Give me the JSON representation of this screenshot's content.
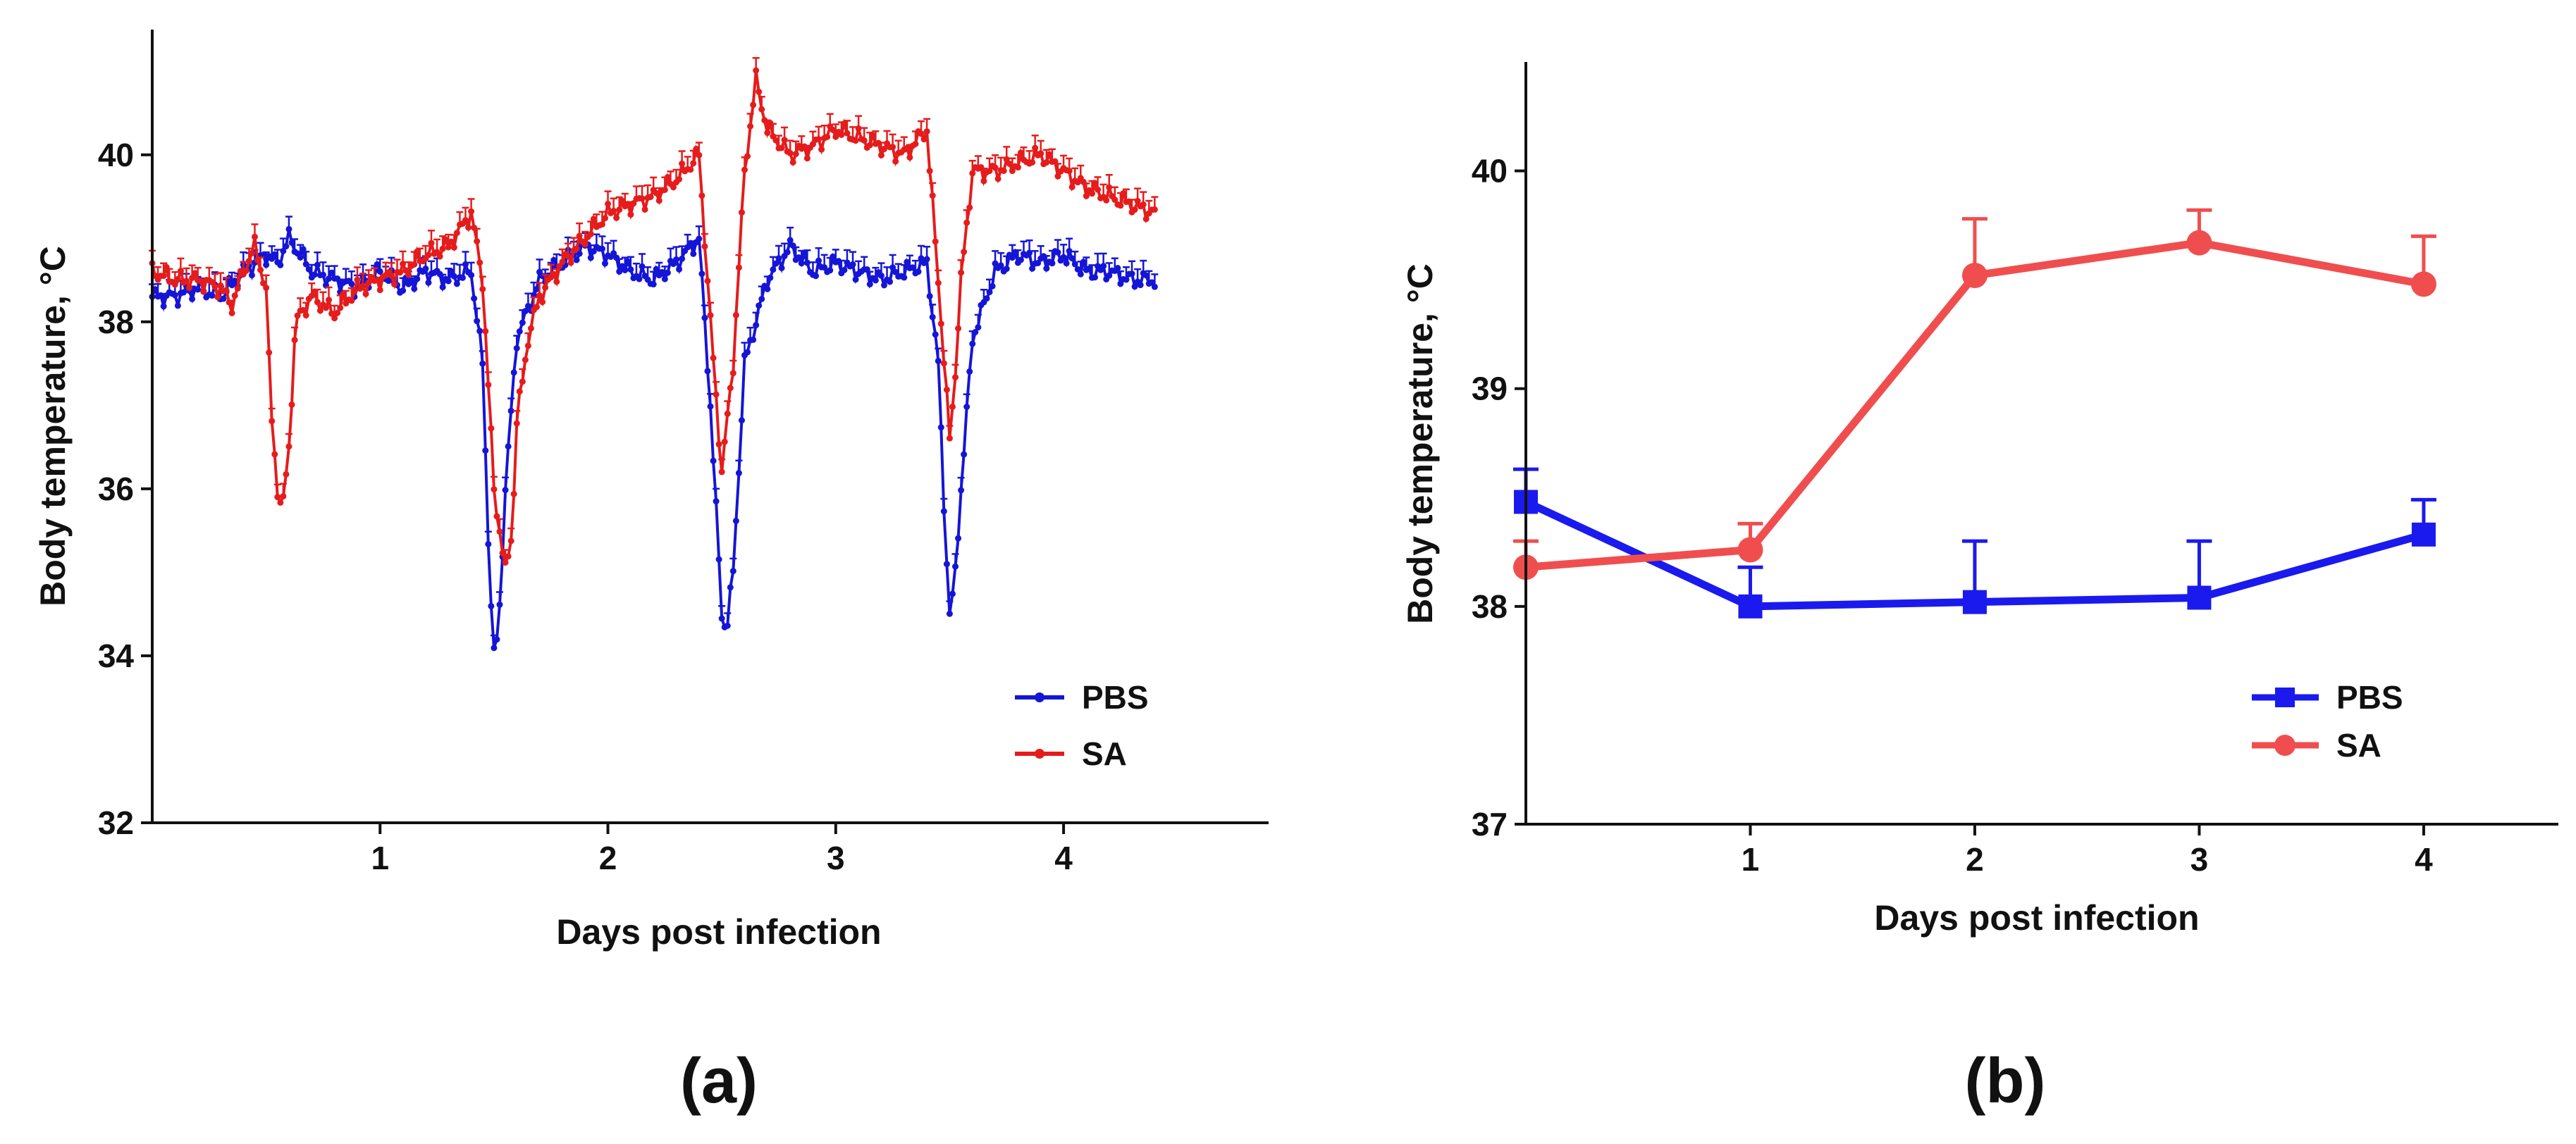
{
  "colors": {
    "pbs_a": "#1515d6",
    "sa_a": "#e51c1c",
    "pbs_b": "#1a1aee",
    "sa_b": "#f04e4e"
  },
  "chart_data": [
    {
      "type": "line",
      "panel_label": "(a)",
      "xlabel": "Days post infection",
      "ylabel": "Body temperature, °C",
      "xlim": [
        0,
        4.9
      ],
      "ylim": [
        32,
        41.5
      ],
      "x_ticks": [
        1,
        2,
        3,
        4
      ],
      "x_tick_labels": [
        "1",
        "2",
        "3",
        "4"
      ],
      "y_ticks": [
        32,
        34,
        36,
        38,
        40
      ],
      "y_tick_labels": [
        "32",
        "34",
        "36",
        "38",
        "40"
      ],
      "legend": {
        "position": "bottom-right",
        "entries": [
          "PBS",
          "SA"
        ]
      },
      "series": [
        {
          "name": "PBS",
          "color_key": "pbs_a",
          "marker": "dot",
          "error_bars": "upper",
          "error": 0.15,
          "x": [
            0,
            0.1,
            0.2,
            0.3,
            0.4,
            0.5,
            0.55,
            0.6,
            0.7,
            0.8,
            0.9,
            1.0,
            1.1,
            1.2,
            1.3,
            1.4,
            1.45,
            1.48,
            1.5,
            1.52,
            1.55,
            1.6,
            1.7,
            1.8,
            1.9,
            2.0,
            2.1,
            2.2,
            2.3,
            2.4,
            2.45,
            2.5,
            2.52,
            2.55,
            2.6,
            2.7,
            2.8,
            2.9,
            3.0,
            3.1,
            3.2,
            3.3,
            3.4,
            3.45,
            3.48,
            3.5,
            3.52,
            3.55,
            3.6,
            3.7,
            3.8,
            3.9,
            4.0,
            4.1,
            4.2,
            4.3,
            4.4
          ],
          "y": [
            38.3,
            38.3,
            38.4,
            38.3,
            38.6,
            38.8,
            38.7,
            39.0,
            38.6,
            38.5,
            38.4,
            38.6,
            38.4,
            38.6,
            38.5,
            38.6,
            37.5,
            35.0,
            34.0,
            34.3,
            36.0,
            37.8,
            38.5,
            38.7,
            38.9,
            38.8,
            38.6,
            38.5,
            38.7,
            39.0,
            37.0,
            34.5,
            34.3,
            35.0,
            37.5,
            38.5,
            38.9,
            38.6,
            38.7,
            38.6,
            38.5,
            38.6,
            38.7,
            37.5,
            35.5,
            34.5,
            34.8,
            36.0,
            37.8,
            38.6,
            38.8,
            38.7,
            38.8,
            38.6,
            38.6,
            38.5,
            38.5
          ]
        },
        {
          "name": "SA",
          "color_key": "sa_a",
          "marker": "dot",
          "error_bars": "upper",
          "error": 0.15,
          "x": [
            0,
            0.1,
            0.2,
            0.3,
            0.35,
            0.4,
            0.45,
            0.5,
            0.52,
            0.55,
            0.57,
            0.6,
            0.63,
            0.7,
            0.8,
            0.9,
            1.0,
            1.1,
            1.2,
            1.3,
            1.4,
            1.45,
            1.5,
            1.55,
            1.58,
            1.6,
            1.65,
            1.7,
            1.8,
            1.9,
            2.0,
            2.1,
            2.2,
            2.3,
            2.4,
            2.45,
            2.5,
            2.55,
            2.6,
            2.65,
            2.7,
            2.8,
            2.9,
            3.0,
            3.1,
            3.2,
            3.3,
            3.4,
            3.45,
            3.5,
            3.52,
            3.55,
            3.6,
            3.7,
            3.8,
            3.9,
            4.0,
            4.1,
            4.2,
            4.3,
            4.4
          ],
          "y": [
            38.6,
            38.5,
            38.5,
            38.4,
            38.2,
            38.6,
            38.9,
            38.4,
            37.0,
            36.0,
            35.7,
            36.5,
            38.0,
            38.3,
            38.1,
            38.4,
            38.5,
            38.6,
            38.8,
            38.9,
            39.3,
            38.5,
            36.0,
            35.0,
            35.5,
            36.8,
            37.8,
            38.3,
            38.7,
            39.0,
            39.3,
            39.4,
            39.5,
            39.7,
            40.0,
            38.0,
            36.2,
            37.5,
            39.8,
            40.9,
            40.3,
            40.0,
            40.1,
            40.3,
            40.2,
            40.1,
            40.0,
            40.3,
            38.5,
            36.6,
            37.2,
            38.5,
            39.8,
            39.8,
            39.9,
            40.0,
            39.8,
            39.6,
            39.5,
            39.4,
            39.3
          ]
        }
      ]
    },
    {
      "type": "line",
      "panel_label": "(b)",
      "xlabel": "Days post infection",
      "ylabel": "Body temperature, °C",
      "xlim": [
        0,
        4.6
      ],
      "ylim": [
        37,
        40.5
      ],
      "x_ticks": [
        1,
        2,
        3,
        4
      ],
      "x_tick_labels": [
        "1",
        "2",
        "3",
        "4"
      ],
      "y_ticks": [
        37,
        38,
        39,
        40
      ],
      "y_tick_labels": [
        "37",
        "38",
        "39",
        "40"
      ],
      "legend": {
        "position": "bottom-right",
        "entries": [
          "PBS",
          "SA"
        ]
      },
      "series": [
        {
          "name": "PBS",
          "color_key": "pbs_b",
          "marker": "square",
          "x": [
            0,
            1,
            2,
            3,
            4
          ],
          "y": [
            38.48,
            38.0,
            38.02,
            38.04,
            38.33
          ],
          "error_upper": [
            0.15,
            0.18,
            0.28,
            0.26,
            0.16
          ]
        },
        {
          "name": "SA",
          "color_key": "sa_b",
          "marker": "circle",
          "x": [
            0,
            1,
            2,
            3,
            4
          ],
          "y": [
            38.18,
            38.26,
            39.52,
            39.67,
            39.48
          ],
          "error_upper": [
            0.12,
            0.12,
            0.26,
            0.15,
            0.22
          ]
        }
      ]
    }
  ]
}
